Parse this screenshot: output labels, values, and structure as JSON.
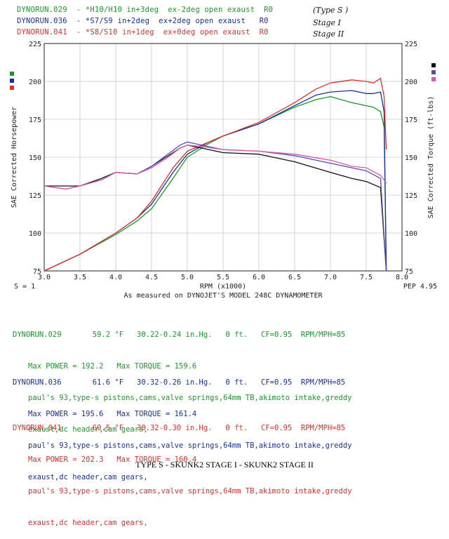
{
  "header": {
    "runs": [
      {
        "text": "DYNORUN.029  - *H10/H10 in+3deg  ex-2deg open exaust  R0",
        "color": "#1a9a2a"
      },
      {
        "text": "DYNORUN.036  - *S7/S9 in+2deg  ex+2deg open exaust   R0",
        "color": "#1a2fa0"
      },
      {
        "text": "DYNORUN.041  - *S8/S10 in+1deg  ex+0deg open exaust  R0",
        "color": "#e0302a"
      }
    ],
    "annotations": [
      "(Type S )",
      "Stage I",
      "Stage II"
    ]
  },
  "chart_data": {
    "type": "line",
    "xlabel": "RPM (x1000)",
    "ylabel_left": "SAE Corrected Horsepower",
    "ylabel_right": "SAE Corrected Torque (ft-lbs)",
    "caption_below_axis": "As measured on DYNOJET'S MODEL 248C DYNAMOMETER",
    "smoothing_label": "S = 1",
    "pep_label": "PEP 4.95",
    "xlim": [
      3.0,
      8.0
    ],
    "ylim": [
      75,
      225
    ],
    "x_ticks": [
      "3.0",
      "3.5",
      "4.0",
      "4.5",
      "5.0",
      "5.5",
      "6.0",
      "6.5",
      "7.0",
      "7.5",
      "8.0"
    ],
    "y_ticks": [
      "75",
      "100",
      "125",
      "150",
      "175",
      "200",
      "225"
    ],
    "grid": true,
    "series": [
      {
        "name": "DYNORUN.029 Power",
        "color": "#1a9a2a",
        "x": [
          3.0,
          3.5,
          4.0,
          4.3,
          4.5,
          4.8,
          5.0,
          5.3,
          5.5,
          6.0,
          6.5,
          6.8,
          7.0,
          7.3,
          7.5,
          7.6,
          7.7,
          7.75,
          7.78
        ],
        "y": [
          75,
          86,
          99,
          108,
          116,
          136,
          150,
          159,
          164,
          172,
          183,
          188,
          190,
          186,
          184,
          183,
          180,
          170,
          75
        ]
      },
      {
        "name": "DYNORUN.036 Power",
        "color": "#1a2fa0",
        "x": [
          3.0,
          3.5,
          4.0,
          4.3,
          4.5,
          4.8,
          5.0,
          5.3,
          5.5,
          6.0,
          6.5,
          6.8,
          7.0,
          7.3,
          7.5,
          7.6,
          7.7,
          7.75,
          7.78
        ],
        "y": [
          75,
          86,
          100,
          110,
          119,
          140,
          152,
          160,
          164,
          172,
          184,
          191,
          193,
          194,
          192,
          192,
          193,
          180,
          75
        ]
      },
      {
        "name": "DYNORUN.041 Power",
        "color": "#e0302a",
        "x": [
          3.0,
          3.5,
          4.0,
          4.3,
          4.5,
          4.8,
          5.0,
          5.3,
          5.5,
          6.0,
          6.5,
          6.8,
          7.0,
          7.3,
          7.5,
          7.6,
          7.7,
          7.75,
          7.78
        ],
        "y": [
          75,
          86,
          100,
          110,
          121,
          143,
          154,
          160,
          164,
          173,
          186,
          195,
          199,
          201,
          200,
          199,
          202,
          190,
          155
        ]
      },
      {
        "name": "DYNORUN.029 Torque",
        "color": "#111111",
        "x": [
          3.0,
          3.3,
          3.5,
          3.8,
          4.0,
          4.3,
          4.5,
          4.7,
          4.9,
          5.0,
          5.2,
          5.5,
          6.0,
          6.5,
          7.0,
          7.3,
          7.5,
          7.7,
          7.78
        ],
        "y": [
          131,
          131,
          131,
          136,
          140,
          139,
          144,
          150,
          156,
          158,
          156,
          153,
          152,
          147,
          140,
          136,
          134,
          130,
          75
        ]
      },
      {
        "name": "DYNORUN.036 Torque",
        "color": "#5a4bb0",
        "x": [
          3.0,
          3.3,
          3.5,
          3.8,
          4.0,
          4.3,
          4.5,
          4.7,
          4.9,
          5.0,
          5.2,
          5.5,
          6.0,
          6.5,
          7.0,
          7.3,
          7.5,
          7.7,
          7.78
        ],
        "y": [
          131,
          129,
          131,
          135,
          140,
          139,
          144,
          151,
          158,
          160,
          158,
          155,
          154,
          151,
          146,
          143,
          141,
          136,
          75
        ]
      },
      {
        "name": "DYNORUN.041 Torque",
        "color": "#d85ab0",
        "x": [
          3.0,
          3.3,
          3.5,
          3.8,
          4.0,
          4.3,
          4.5,
          4.7,
          4.9,
          5.0,
          5.2,
          5.5,
          6.0,
          6.5,
          7.0,
          7.3,
          7.5,
          7.7,
          7.78
        ],
        "y": [
          131,
          129,
          131,
          135,
          140,
          139,
          143,
          149,
          156,
          158,
          157,
          155,
          154,
          152,
          148,
          144,
          143,
          138,
          133
        ]
      }
    ],
    "legend_swatches_left": [
      "#1a9a2a",
      "#1a2fa0",
      "#e0302a"
    ],
    "legend_swatches_right": [
      "#111111",
      "#5a4bb0",
      "#d85ab0"
    ]
  },
  "runs_info": [
    {
      "color": "#1a9a2a",
      "line1": "DYNORUN.029       59.2 °F   30.22-0.24 in.Hg.   0 ft.   CF=0.95  RPM/MPH=85",
      "line2": "Max POWER = 192.2   Max TORQUE = 159.6",
      "line3": "paul's 93,type-s pistons,cams,valve springs,64mm TB,akimoto intake,greddy",
      "line4": "exaust,dc header,cam gears,"
    },
    {
      "color": "#1a2fa0",
      "line1": "DYNORUN.036       61.6 °F   30.32-0.26 in.Hg.   0 ft.   CF=0.95  RPM/MPH=85",
      "line2": "Max POWER = 195.6   Max TORQUE = 161.4",
      "line3": "paul's 93,type-s pistons,cams,valve springs,64mm TB,akimoto intake,greddy",
      "line4": "exaust,dc header,cam gears,"
    },
    {
      "color": "#e0302a",
      "line1": "DYNORUN.041       60.5 °F   30.32-0.30 in.Hg.   0 ft.   CF=0.95  RPM/MPH=85",
      "line2": "Max POWER = 202.3   Max TORQUE = 160.4",
      "line3": "paul's 93,type-s pistons,cams,valve springs,64mm TB,akimoto intake,greddy",
      "line4": "exaust,dc header,cam gears,"
    }
  ],
  "caption": "TYPE S - SKUNK2 STAGE I - SKUNK2 STAGE II"
}
